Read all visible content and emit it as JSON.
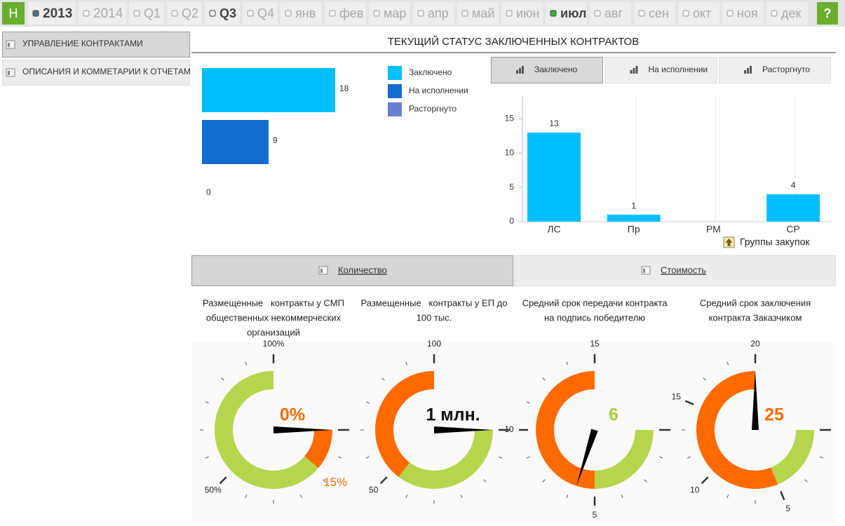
{
  "nav": {
    "home": "Н",
    "help": "?",
    "items": [
      {
        "label": "2013",
        "active": true,
        "icon_color": "#4d6f91"
      },
      {
        "label": "2014",
        "active": false
      },
      {
        "label": "Q1",
        "active": false
      },
      {
        "label": "Q2",
        "active": false
      },
      {
        "label": "Q3",
        "active": true,
        "icon_color": "#ffffff"
      },
      {
        "label": "Q4",
        "active": false
      },
      {
        "label": "янв",
        "active": false
      },
      {
        "label": "фев",
        "active": false
      },
      {
        "label": "мар",
        "active": false
      },
      {
        "label": "апр",
        "active": false
      },
      {
        "label": "май",
        "active": false
      },
      {
        "label": "июн",
        "active": false
      },
      {
        "label": "июл",
        "active": true,
        "icon_color": "#2fb52f"
      },
      {
        "label": "авг",
        "active": false
      },
      {
        "label": "сен",
        "active": false
      },
      {
        "label": "окт",
        "active": false
      },
      {
        "label": "ноя",
        "active": false
      },
      {
        "label": "дек",
        "active": false
      }
    ]
  },
  "sidebar": [
    {
      "label": "УПРАВЛЕНИЕ КОНТРАКТАМИ",
      "active": true
    },
    {
      "label": "ОПИСАНИЯ И КОММЕТАРИИ К ОТЧЕТАМ",
      "active": false
    }
  ],
  "title": "ТЕКУЩИЙ СТАТУС ЗАКЛЮЧЕННЫХ КОНТРАКТОВ",
  "chart_data": [
    {
      "type": "hbar",
      "series": [
        {
          "name": "Заключено",
          "color": "#00bfff",
          "values": [
            18
          ]
        },
        {
          "name": "На исполнении",
          "color": "#136ccf",
          "values": [
            9
          ]
        },
        {
          "name": "Расторгнуто",
          "color": "#6b7fd4",
          "values": [
            0
          ]
        }
      ]
    },
    {
      "type": "bar",
      "categories": [
        "ЛС",
        "Пр",
        "РМ",
        "СР"
      ],
      "values": [
        13,
        1,
        null,
        4
      ],
      "color": "#00bfff",
      "x_label": "Группы закупок",
      "ylim": [
        0,
        17
      ],
      "yticks": [
        0,
        5,
        10,
        15
      ],
      "grid": false
    }
  ],
  "chart_tabs": [
    {
      "label": "Заключено",
      "active": true
    },
    {
      "label": "На исполнении",
      "active": false
    },
    {
      "label": "Расторгнуто",
      "active": false
    }
  ],
  "toggles": [
    {
      "label": "Количество",
      "active": true
    },
    {
      "label": "Стоимость",
      "active": false
    }
  ],
  "gauges": [
    {
      "title": [
        "Размещенные   контракты у СМП",
        "общественных некоммерческих",
        "организаций"
      ],
      "range": [
        0,
        100
      ],
      "ticks": [
        {
          "value": 50,
          "label": "50%"
        },
        {
          "value": 100,
          "label": "100%"
        }
      ],
      "bands": [
        {
          "from": 0,
          "to": 15,
          "color": "#ff6a00",
          "label": "15%"
        },
        {
          "from": 15,
          "to": 100,
          "color": "#b5d54c"
        }
      ],
      "needle": 0,
      "readout": "0%",
      "readout_color": "#ff6a00"
    },
    {
      "title": [
        "Размещенные   контракты у ЕП до",
        "100 тыс."
      ],
      "range": [
        0,
        100
      ],
      "ticks": [
        50,
        100
      ],
      "bands": [
        {
          "from": 0,
          "to": 47,
          "color": "#b5d54c"
        },
        {
          "from": 47,
          "to": 100,
          "color": "#ff6a00"
        }
      ],
      "needle": 0,
      "readout": "1 млн.",
      "readout_color": "#111111"
    },
    {
      "title": [
        "Средний срок передачи контракта",
        "на подпись победителю"
      ],
      "range": [
        0,
        15
      ],
      "ticks": [
        5,
        10,
        15
      ],
      "bands": [
        {
          "from": 0,
          "to": 5,
          "color": "#b5d54c"
        },
        {
          "from": 5,
          "to": 15,
          "color": "#ff6a00"
        }
      ],
      "needle": 6,
      "readout": "6",
      "readout_color": "#a9cf3c"
    },
    {
      "title": [
        "Средний срок заключения",
        "контракта Заказчиком"
      ],
      "range": [
        0,
        20
      ],
      "ticks": [
        5,
        10,
        15,
        20
      ],
      "bands": [
        {
          "from": 0,
          "to": 5,
          "color": "#b5d54c"
        },
        {
          "from": 5,
          "to": 20,
          "color": "#ff6a00"
        }
      ],
      "needle": 20,
      "readout": "25",
      "readout_color": "#ff6a00"
    }
  ]
}
